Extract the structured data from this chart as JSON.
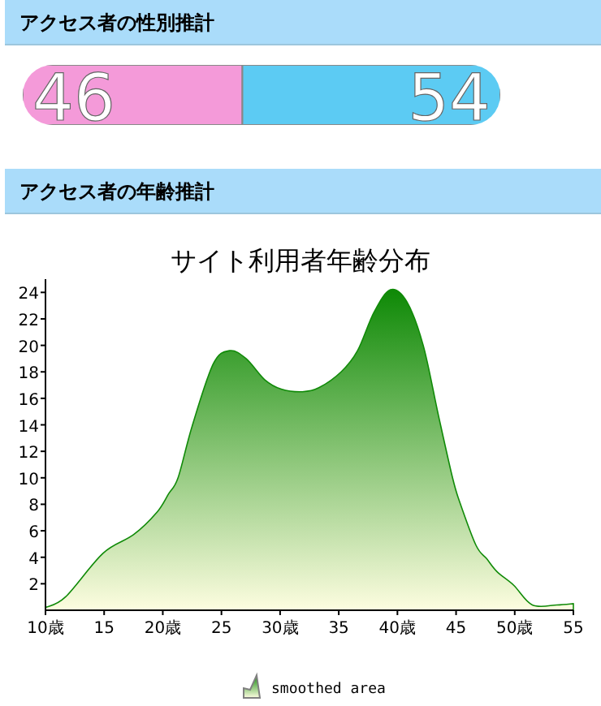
{
  "chart_data": [
    {
      "type": "bar",
      "title": "アクセス者の性別推計",
      "orientation": "horizontal",
      "stacked": true,
      "data_labels": true,
      "categories": [
        null
      ],
      "series": [
        {
          "color": "#f49ad9",
          "values": [
            46
          ]
        },
        {
          "color": "#5ccbf3",
          "values": [
            54
          ]
        }
      ]
    },
    {
      "type": "area",
      "subtitle": "アクセス者の年齢推計",
      "title": "サイト利用者年齢分布",
      "legend": "bottom",
      "xlim": [
        10,
        55
      ],
      "ylim": [
        0,
        25
      ],
      "xticks": [
        {
          "value": 10,
          "label": "10歳"
        },
        15,
        {
          "value": 20,
          "label": "20歳"
        },
        25,
        {
          "value": 30,
          "label": "30歳"
        },
        35,
        {
          "value": 40,
          "label": "40歳"
        },
        45,
        {
          "value": 50,
          "label": "50歳"
        },
        55
      ],
      "yticks": [
        2,
        4,
        6,
        8,
        10,
        12,
        14,
        16,
        18,
        20,
        22,
        24
      ],
      "series": [
        {
          "name": "smoothed area",
          "color": "#108a08",
          "x": [
            10,
            11.7,
            14.9,
            17.5,
            19.5,
            20.5,
            21.3,
            22.5,
            24.3,
            25.7,
            27.1,
            28.7,
            30.1,
            31.9,
            33.3,
            35.2,
            36.6,
            38.0,
            39.4,
            40.8,
            42.2,
            43.5,
            44.7,
            45.3,
            46.7,
            47.6,
            48.5,
            49.9,
            51.5,
            53.6,
            55
          ],
          "values": [
            0.2,
            1.0,
            4.3,
            5.7,
            7.4,
            8.8,
            10,
            13.9,
            18.6,
            19.6,
            19.0,
            17.4,
            16.7,
            16.5,
            16.8,
            18.0,
            19.6,
            22.5,
            24.2,
            23.3,
            20.0,
            14.7,
            10,
            8.2,
            4.9,
            3.9,
            2.9,
            1.9,
            0.4,
            0.4,
            0.5
          ]
        }
      ]
    }
  ]
}
